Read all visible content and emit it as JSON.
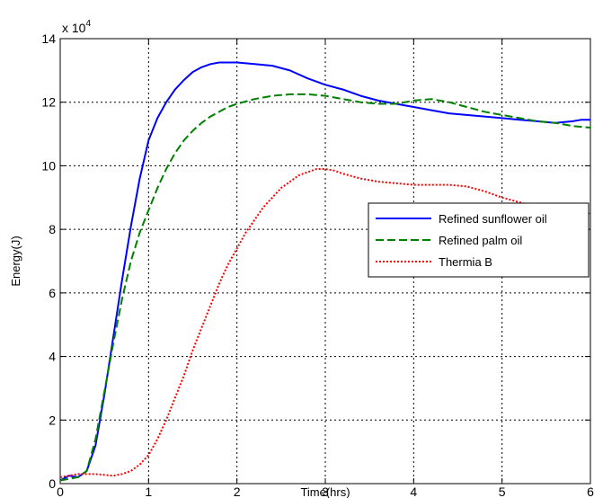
{
  "chart_data": {
    "type": "line",
    "xlabel": "Time(hrs)",
    "ylabel": "Energy(J)",
    "y_multiplier_label": "x 10",
    "y_multiplier_exponent": "4",
    "xlim": [
      0,
      6
    ],
    "ylim": [
      0,
      14
    ],
    "xticks": [
      "0",
      "1",
      "2",
      "3",
      "4",
      "5",
      "6"
    ],
    "yticks": [
      "0",
      "2",
      "4",
      "6",
      "8",
      "10",
      "12",
      "14"
    ],
    "grid": true,
    "legend_position": "right",
    "series": [
      {
        "name": "Refined sunflower oil",
        "color": "#0000ff",
        "dash": "solid",
        "x": [
          0,
          0.1,
          0.2,
          0.3,
          0.4,
          0.5,
          0.6,
          0.7,
          0.8,
          0.9,
          1.0,
          1.1,
          1.2,
          1.3,
          1.4,
          1.5,
          1.6,
          1.7,
          1.8,
          1.9,
          2.0,
          2.2,
          2.4,
          2.6,
          2.8,
          3.0,
          3.2,
          3.4,
          3.6,
          3.8,
          4.0,
          4.2,
          4.4,
          4.6,
          4.8,
          5.0,
          5.2,
          5.4,
          5.6,
          5.8,
          5.9,
          6.0
        ],
        "y": [
          0.1,
          0.25,
          0.2,
          0.4,
          1.2,
          2.8,
          4.6,
          6.4,
          8.1,
          9.6,
          10.8,
          11.5,
          12.0,
          12.4,
          12.7,
          12.95,
          13.1,
          13.2,
          13.25,
          13.25,
          13.25,
          13.2,
          13.15,
          13.0,
          12.75,
          12.55,
          12.4,
          12.2,
          12.05,
          11.95,
          11.85,
          11.75,
          11.65,
          11.6,
          11.55,
          11.5,
          11.45,
          11.4,
          11.35,
          11.4,
          11.45,
          11.45
        ]
      },
      {
        "name": "Refined palm oil",
        "color": "#008000",
        "dash": "dashed",
        "x": [
          0,
          0.1,
          0.2,
          0.3,
          0.4,
          0.5,
          0.6,
          0.7,
          0.8,
          0.9,
          1.0,
          1.1,
          1.2,
          1.3,
          1.4,
          1.5,
          1.6,
          1.7,
          1.8,
          1.9,
          2.0,
          2.2,
          2.4,
          2.6,
          2.8,
          3.0,
          3.2,
          3.4,
          3.6,
          3.8,
          4.0,
          4.2,
          4.4,
          4.6,
          4.8,
          5.0,
          5.2,
          5.4,
          5.6,
          5.8,
          6.0
        ],
        "y": [
          0.1,
          0.15,
          0.2,
          0.4,
          1.4,
          2.9,
          4.4,
          5.8,
          7.0,
          7.9,
          8.6,
          9.3,
          9.9,
          10.4,
          10.8,
          11.1,
          11.35,
          11.55,
          11.7,
          11.85,
          11.95,
          12.1,
          12.2,
          12.25,
          12.25,
          12.2,
          12.1,
          12.0,
          11.95,
          11.95,
          12.05,
          12.1,
          12.0,
          11.85,
          11.7,
          11.6,
          11.5,
          11.4,
          11.35,
          11.25,
          11.2
        ]
      },
      {
        "name": "Thermia B",
        "color": "#ff0000",
        "dash": "dotted",
        "x": [
          0,
          0.2,
          0.4,
          0.6,
          0.7,
          0.8,
          0.9,
          1.0,
          1.1,
          1.2,
          1.3,
          1.4,
          1.5,
          1.6,
          1.7,
          1.8,
          1.9,
          2.0,
          2.1,
          2.2,
          2.3,
          2.4,
          2.5,
          2.6,
          2.7,
          2.8,
          2.9,
          3.0,
          3.1,
          3.2,
          3.4,
          3.6,
          3.8,
          4.0,
          4.2,
          4.4,
          4.6,
          4.8,
          5.0,
          5.2,
          5.4,
          5.6,
          5.8,
          5.9,
          6.0
        ],
        "y": [
          0.2,
          0.3,
          0.3,
          0.25,
          0.3,
          0.4,
          0.6,
          0.9,
          1.4,
          2.0,
          2.7,
          3.4,
          4.2,
          4.9,
          5.6,
          6.3,
          6.9,
          7.4,
          7.9,
          8.3,
          8.7,
          9.0,
          9.3,
          9.5,
          9.7,
          9.8,
          9.9,
          9.9,
          9.85,
          9.75,
          9.6,
          9.5,
          9.45,
          9.4,
          9.4,
          9.4,
          9.35,
          9.2,
          9.0,
          8.85,
          8.7,
          8.65,
          8.75,
          8.7,
          8.45
        ]
      }
    ]
  }
}
